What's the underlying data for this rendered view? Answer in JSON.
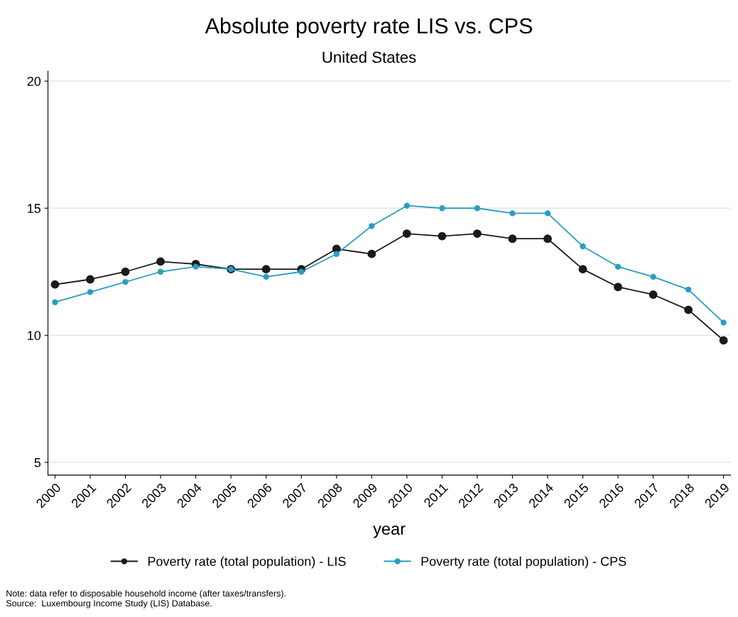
{
  "chart_data": {
    "type": "line",
    "title": "Absolute poverty rate LIS vs. CPS",
    "subtitle": "United States",
    "xlabel": "year",
    "categories": [
      "2000",
      "2001",
      "2002",
      "2003",
      "2004",
      "2005",
      "2006",
      "2007",
      "2008",
      "2009",
      "2010",
      "2011",
      "2012",
      "2013",
      "2014",
      "2015",
      "2016",
      "2017",
      "2018",
      "2019"
    ],
    "series": [
      {
        "name": "Poverty rate (total population) - LIS",
        "color": "#1a1a1a",
        "values": [
          12.0,
          12.2,
          12.5,
          12.9,
          12.8,
          12.6,
          12.6,
          12.6,
          13.4,
          13.2,
          14.0,
          13.9,
          14.0,
          13.8,
          13.8,
          12.6,
          11.9,
          11.6,
          11.0,
          9.8
        ]
      },
      {
        "name": "Poverty rate (total population) - CPS",
        "color": "#2a9dc2",
        "values": [
          11.3,
          11.7,
          12.1,
          12.5,
          12.7,
          12.6,
          12.3,
          12.5,
          13.2,
          14.3,
          15.1,
          15.0,
          15.0,
          14.8,
          14.8,
          13.5,
          12.7,
          12.3,
          11.8,
          10.5
        ]
      }
    ],
    "ylim": [
      4.5,
      20.4
    ],
    "yticks": [
      5,
      10,
      15,
      20
    ],
    "grid": "y",
    "legend": "bottom",
    "marker": "circle",
    "line_style": "solid",
    "annotations": [
      "Note: data refer to disposable household income (after taxes/transfers).",
      "Source:  Luxembourg Income Study (LIS) Database."
    ]
  }
}
